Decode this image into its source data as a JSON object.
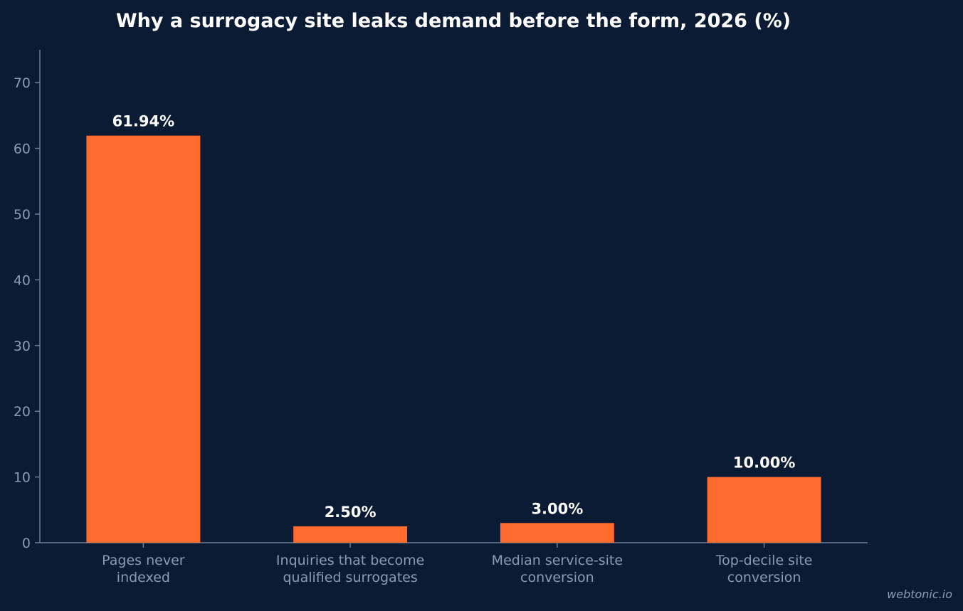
{
  "chart_data": {
    "type": "bar",
    "title": "Why a surrogacy site leaks demand before the form, 2026 (%)",
    "categories": [
      [
        "Pages never",
        "indexed"
      ],
      [
        "Inquiries that become",
        "qualified surrogates"
      ],
      [
        "Median service-site",
        "conversion"
      ],
      [
        "Top-decile site",
        "conversion"
      ]
    ],
    "values": [
      61.94,
      2.5,
      3.0,
      10.0
    ],
    "value_labels": [
      "61.94%",
      "2.50%",
      "3.00%",
      "10.00%"
    ],
    "xlabel": "",
    "ylabel": "",
    "ylim": [
      0,
      75
    ],
    "yticks": [
      0,
      10,
      20,
      30,
      40,
      50,
      60,
      70
    ],
    "grid": false,
    "legend": "none",
    "bar_color": "#ff6b2c",
    "background_color": "#0b1b33"
  },
  "watermark": "webtonic.io"
}
